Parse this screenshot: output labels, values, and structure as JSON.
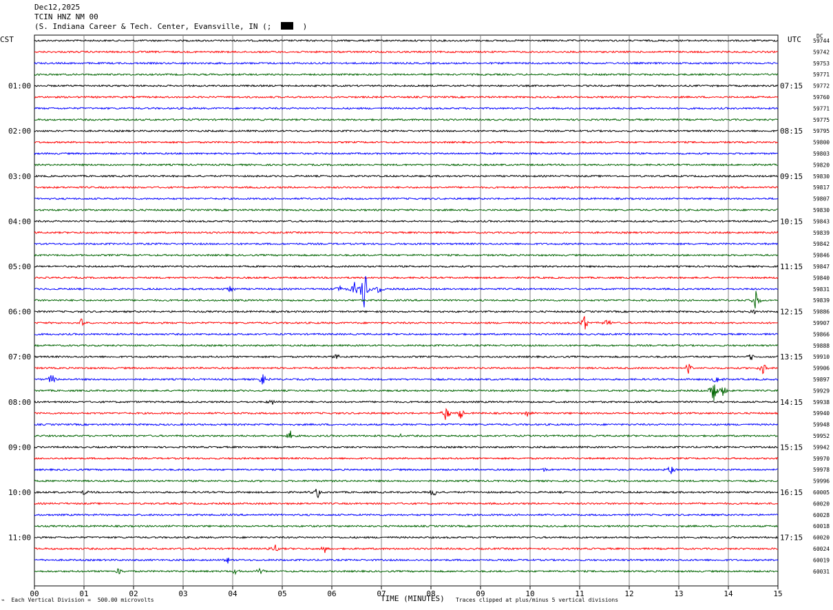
{
  "header": {
    "date": "Dec12,2025",
    "station": "TCIN HNZ NM 00",
    "location": "(S. Indiana Career & Tech. Center, Evansville, IN (;",
    "location_end": ")"
  },
  "labels": {
    "left_tz": "CST",
    "right_tz": "UTC",
    "dc": "DC",
    "footer_left": "Each Vertical Division =  500.00 microvolts",
    "footer_right": "Traces clipped at plus/minus 5 vertical divisions"
  },
  "colors": {
    "trace_cycle": [
      "#000000",
      "#ff0000",
      "#0000ff",
      "#006400"
    ],
    "grid": "#808080",
    "background": "#ffffff"
  },
  "chart_data": {
    "type": "line",
    "xlabel": "TIME (MINUTES)",
    "x_ticks": [
      "00",
      "01",
      "02",
      "03",
      "04",
      "05",
      "06",
      "07",
      "08",
      "09",
      "10",
      "11",
      "12",
      "13",
      "14",
      "15"
    ],
    "xlim": [
      0,
      15
    ],
    "trace_count": 48,
    "left_hour_labels": [
      "01:00",
      "02:00",
      "03:00",
      "04:00",
      "05:00",
      "06:00",
      "07:00",
      "08:00",
      "09:00",
      "10:00",
      "11:00"
    ],
    "right_hour_labels": [
      "07:15",
      "08:15",
      "09:15",
      "10:15",
      "11:15",
      "12:15",
      "13:15",
      "14:15",
      "15:15",
      "16:15",
      "17:15"
    ],
    "hour_label_first_trace": 4,
    "hour_label_every": 4,
    "dc_values": [
      "59744",
      "59742",
      "59753",
      "59771",
      "59772",
      "59760",
      "59771",
      "59775",
      "59795",
      "59800",
      "59803",
      "59820",
      "59830",
      "59817",
      "59807",
      "59830",
      "59843",
      "59839",
      "59842",
      "59846",
      "59847",
      "59840",
      "59831",
      "59839",
      "59886",
      "59907",
      "59866",
      "59888",
      "59910",
      "59906",
      "59897",
      "59929",
      "59938",
      "59940",
      "59948",
      "59952",
      "59942",
      "59970",
      "59978",
      "59996",
      "60005",
      "60020",
      "60028",
      "60018",
      "60020",
      "60024",
      "60019",
      "60031"
    ],
    "events": [
      {
        "trace": 22,
        "minute": 3.95,
        "amp": 6
      },
      {
        "trace": 22,
        "minute": 6.15,
        "amp": 7
      },
      {
        "trace": 22,
        "minute": 6.65,
        "amp": 38
      },
      {
        "trace": 22,
        "minute": 6.45,
        "amp": 14
      },
      {
        "trace": 22,
        "minute": 6.95,
        "amp": 8
      },
      {
        "trace": 23,
        "minute": 14.55,
        "amp": 16
      },
      {
        "trace": 24,
        "minute": 14.5,
        "amp": 8
      },
      {
        "trace": 25,
        "minute": 0.95,
        "amp": 8
      },
      {
        "trace": 25,
        "minute": 11.1,
        "amp": 12
      },
      {
        "trace": 25,
        "minute": 11.55,
        "amp": 10
      },
      {
        "trace": 28,
        "minute": 6.1,
        "amp": 6
      },
      {
        "trace": 28,
        "minute": 14.45,
        "amp": 6
      },
      {
        "trace": 29,
        "minute": 13.2,
        "amp": 9
      },
      {
        "trace": 29,
        "minute": 14.7,
        "amp": 10
      },
      {
        "trace": 30,
        "minute": 0.35,
        "amp": 12
      },
      {
        "trace": 30,
        "minute": 4.6,
        "amp": 10
      },
      {
        "trace": 30,
        "minute": 13.75,
        "amp": 10
      },
      {
        "trace": 31,
        "minute": 13.7,
        "amp": 20
      },
      {
        "trace": 31,
        "minute": 13.9,
        "amp": 12
      },
      {
        "trace": 32,
        "minute": 4.8,
        "amp": 5
      },
      {
        "trace": 33,
        "minute": 8.3,
        "amp": 14
      },
      {
        "trace": 33,
        "minute": 8.6,
        "amp": 10
      },
      {
        "trace": 33,
        "minute": 9.95,
        "amp": 8
      },
      {
        "trace": 35,
        "minute": 5.15,
        "amp": 10
      },
      {
        "trace": 35,
        "minute": 7.4,
        "amp": 5
      },
      {
        "trace": 38,
        "minute": 12.85,
        "amp": 8
      },
      {
        "trace": 38,
        "minute": 10.25,
        "amp": 5
      },
      {
        "trace": 40,
        "minute": 5.7,
        "amp": 11
      },
      {
        "trace": 40,
        "minute": 8.05,
        "amp": 10
      },
      {
        "trace": 40,
        "minute": 1.0,
        "amp": 5
      },
      {
        "trace": 45,
        "minute": 4.85,
        "amp": 9
      },
      {
        "trace": 45,
        "minute": 5.85,
        "amp": 8
      },
      {
        "trace": 46,
        "minute": 3.9,
        "amp": 5
      },
      {
        "trace": 47,
        "minute": 1.7,
        "amp": 7
      },
      {
        "trace": 47,
        "minute": 4.05,
        "amp": 5
      },
      {
        "trace": 47,
        "minute": 4.55,
        "amp": 5
      }
    ]
  }
}
